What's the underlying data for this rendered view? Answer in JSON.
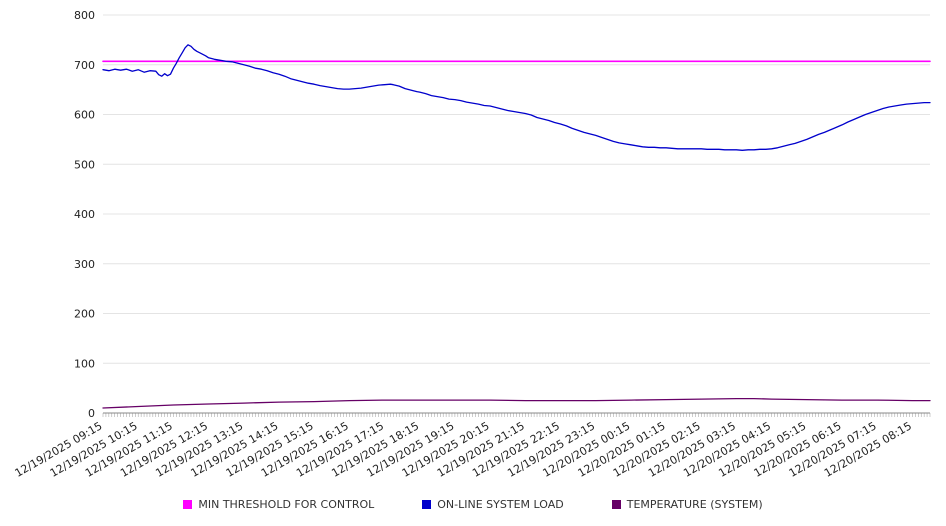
{
  "chart_data": {
    "type": "line",
    "title": "",
    "xlabel": "",
    "ylabel": "",
    "ylim": [
      0,
      800
    ],
    "y_ticks": [
      0,
      100,
      200,
      300,
      400,
      500,
      600,
      700,
      800
    ],
    "xlim": [
      0,
      1410
    ],
    "x_unit": "minutes since 12/19/2025 09:15",
    "grid": "horizontal",
    "legend_position": "bottom",
    "x_tick_positions": [
      0,
      60,
      120,
      180,
      240,
      300,
      360,
      420,
      480,
      540,
      600,
      660,
      720,
      780,
      840,
      900,
      960,
      1020,
      1080,
      1140,
      1200,
      1260,
      1320,
      1380
    ],
    "x_ticks": [
      "12/19/2025 09:15",
      "12/19/2025 10:15",
      "12/19/2025 11:15",
      "12/19/2025 12:15",
      "12/19/2025 13:15",
      "12/19/2025 14:15",
      "12/19/2025 15:15",
      "12/19/2025 16:15",
      "12/19/2025 17:15",
      "12/19/2025 18:15",
      "12/19/2025 19:15",
      "12/19/2025 20:15",
      "12/19/2025 21:15",
      "12/19/2025 22:15",
      "12/19/2025 23:15",
      "12/20/2025 00:15",
      "12/20/2025 01:15",
      "12/20/2025 02:15",
      "12/20/2025 03:15",
      "12/20/2025 04:15",
      "12/20/2025 05:15",
      "12/20/2025 06:15",
      "12/20/2025 07:15",
      "12/20/2025 08:15"
    ],
    "series": [
      {
        "name": "MIN THRESHOLD FOR CONTROL",
        "color": "#ff00ff",
        "width": 1.6,
        "points": [
          [
            0,
            707
          ],
          [
            1410,
            707
          ]
        ]
      },
      {
        "name": "ON-LINE SYSTEM LOAD",
        "color": "#0000cc",
        "width": 1.3,
        "points": [
          [
            0,
            690
          ],
          [
            10,
            688
          ],
          [
            20,
            691
          ],
          [
            30,
            689
          ],
          [
            40,
            691
          ],
          [
            50,
            687
          ],
          [
            60,
            690
          ],
          [
            70,
            685
          ],
          [
            80,
            688
          ],
          [
            90,
            687
          ],
          [
            95,
            680
          ],
          [
            100,
            677
          ],
          [
            105,
            682
          ],
          [
            110,
            678
          ],
          [
            115,
            681
          ],
          [
            120,
            693
          ],
          [
            125,
            703
          ],
          [
            130,
            714
          ],
          [
            135,
            724
          ],
          [
            140,
            734
          ],
          [
            145,
            740
          ],
          [
            150,
            737
          ],
          [
            155,
            731
          ],
          [
            160,
            727
          ],
          [
            165,
            724
          ],
          [
            170,
            721
          ],
          [
            175,
            718
          ],
          [
            180,
            714
          ],
          [
            190,
            711
          ],
          [
            200,
            709
          ],
          [
            210,
            707
          ],
          [
            220,
            706
          ],
          [
            230,
            703
          ],
          [
            240,
            700
          ],
          [
            250,
            697
          ],
          [
            260,
            693
          ],
          [
            270,
            691
          ],
          [
            280,
            688
          ],
          [
            290,
            684
          ],
          [
            300,
            681
          ],
          [
            310,
            677
          ],
          [
            320,
            672
          ],
          [
            330,
            669
          ],
          [
            340,
            666
          ],
          [
            350,
            663
          ],
          [
            360,
            661
          ],
          [
            370,
            658
          ],
          [
            380,
            656
          ],
          [
            390,
            654
          ],
          [
            400,
            652
          ],
          [
            410,
            651
          ],
          [
            420,
            651
          ],
          [
            430,
            652
          ],
          [
            440,
            653
          ],
          [
            450,
            655
          ],
          [
            460,
            657
          ],
          [
            470,
            659
          ],
          [
            480,
            660
          ],
          [
            490,
            661
          ],
          [
            495,
            660
          ],
          [
            505,
            657
          ],
          [
            515,
            652
          ],
          [
            525,
            649
          ],
          [
            535,
            646
          ],
          [
            540,
            645
          ],
          [
            550,
            642
          ],
          [
            560,
            638
          ],
          [
            570,
            636
          ],
          [
            580,
            634
          ],
          [
            590,
            631
          ],
          [
            600,
            630
          ],
          [
            610,
            628
          ],
          [
            620,
            625
          ],
          [
            630,
            623
          ],
          [
            640,
            621
          ],
          [
            650,
            618
          ],
          [
            660,
            617
          ],
          [
            670,
            614
          ],
          [
            680,
            611
          ],
          [
            690,
            608
          ],
          [
            700,
            606
          ],
          [
            710,
            604
          ],
          [
            720,
            602
          ],
          [
            730,
            599
          ],
          [
            740,
            594
          ],
          [
            750,
            591
          ],
          [
            760,
            588
          ],
          [
            770,
            584
          ],
          [
            780,
            581
          ],
          [
            790,
            577
          ],
          [
            800,
            572
          ],
          [
            810,
            568
          ],
          [
            820,
            564
          ],
          [
            830,
            561
          ],
          [
            840,
            558
          ],
          [
            850,
            554
          ],
          [
            860,
            550
          ],
          [
            870,
            546
          ],
          [
            880,
            543
          ],
          [
            890,
            541
          ],
          [
            900,
            539
          ],
          [
            910,
            537
          ],
          [
            920,
            535
          ],
          [
            930,
            534
          ],
          [
            940,
            534
          ],
          [
            950,
            533
          ],
          [
            960,
            533
          ],
          [
            970,
            532
          ],
          [
            980,
            531
          ],
          [
            990,
            531
          ],
          [
            1000,
            531
          ],
          [
            1010,
            531
          ],
          [
            1020,
            531
          ],
          [
            1030,
            530
          ],
          [
            1040,
            530
          ],
          [
            1050,
            530
          ],
          [
            1060,
            529
          ],
          [
            1070,
            529
          ],
          [
            1080,
            529
          ],
          [
            1090,
            528
          ],
          [
            1100,
            529
          ],
          [
            1110,
            529
          ],
          [
            1120,
            530
          ],
          [
            1130,
            530
          ],
          [
            1140,
            531
          ],
          [
            1150,
            533
          ],
          [
            1160,
            536
          ],
          [
            1170,
            539
          ],
          [
            1180,
            542
          ],
          [
            1190,
            546
          ],
          [
            1200,
            550
          ],
          [
            1210,
            555
          ],
          [
            1220,
            560
          ],
          [
            1230,
            564
          ],
          [
            1240,
            569
          ],
          [
            1250,
            574
          ],
          [
            1260,
            579
          ],
          [
            1270,
            585
          ],
          [
            1280,
            590
          ],
          [
            1290,
            595
          ],
          [
            1300,
            600
          ],
          [
            1310,
            604
          ],
          [
            1320,
            608
          ],
          [
            1330,
            612
          ],
          [
            1340,
            615
          ],
          [
            1350,
            617
          ],
          [
            1360,
            619
          ],
          [
            1370,
            621
          ],
          [
            1380,
            622
          ],
          [
            1390,
            623
          ],
          [
            1400,
            624
          ],
          [
            1410,
            624
          ]
        ]
      },
      {
        "name": "TEMPERATURE (SYSTEM)",
        "color": "#660066",
        "width": 1.3,
        "points": [
          [
            0,
            10
          ],
          [
            60,
            13
          ],
          [
            120,
            16
          ],
          [
            180,
            18
          ],
          [
            240,
            20
          ],
          [
            300,
            22
          ],
          [
            360,
            23
          ],
          [
            420,
            25
          ],
          [
            480,
            26
          ],
          [
            540,
            26
          ],
          [
            600,
            26
          ],
          [
            660,
            26
          ],
          [
            720,
            25
          ],
          [
            780,
            25
          ],
          [
            840,
            25
          ],
          [
            900,
            26
          ],
          [
            960,
            27
          ],
          [
            1020,
            28
          ],
          [
            1080,
            29
          ],
          [
            1110,
            29
          ],
          [
            1140,
            28
          ],
          [
            1200,
            27
          ],
          [
            1260,
            26
          ],
          [
            1320,
            26
          ],
          [
            1380,
            25
          ],
          [
            1410,
            25
          ]
        ]
      }
    ]
  }
}
